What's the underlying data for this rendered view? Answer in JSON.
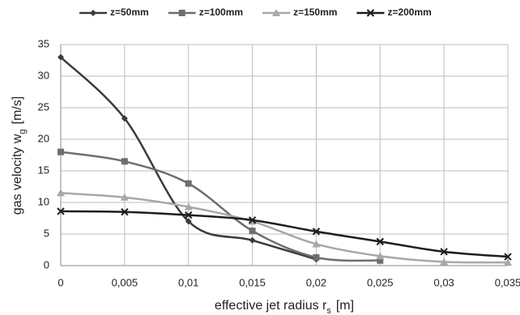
{
  "chart_data": {
    "type": "line",
    "xlabel": {
      "text": "effective jet radius r",
      "sub": "s",
      "unit": "[m]"
    },
    "ylabel": {
      "text": "gas velocity w",
      "sub": "g",
      "unit": "[m/s]"
    },
    "xlim": [
      0,
      0.035
    ],
    "ylim": [
      0,
      35
    ],
    "xticks": [
      0,
      {
        "value": 0.005,
        "label": "0,005"
      },
      {
        "value": 0.01,
        "label": "0,01"
      },
      {
        "value": 0.015,
        "label": "0,015"
      },
      {
        "value": 0.02,
        "label": "0,02"
      },
      {
        "value": 0.025,
        "label": "0,025"
      },
      {
        "value": 0.03,
        "label": "0,03"
      },
      {
        "value": 0.035,
        "label": "0,035"
      }
    ],
    "yticks": [
      0,
      5,
      10,
      15,
      20,
      25,
      30,
      35
    ],
    "grid": true,
    "smooth": true,
    "legend": "top",
    "series": [
      {
        "name": "z=50mm",
        "color": "#3a3a3a",
        "marker": "diamond",
        "x": [
          0,
          0.005,
          0.01,
          0.015,
          0.02
        ],
        "values": [
          33,
          23.3,
          7,
          4,
          1
        ]
      },
      {
        "name": "z=100mm",
        "color": "#6e6e6e",
        "marker": "square",
        "x": [
          0,
          0.005,
          0.01,
          0.015,
          0.02,
          0.025
        ],
        "values": [
          18,
          16.5,
          13,
          5.5,
          1.3,
          0.8
        ]
      },
      {
        "name": "z=150mm",
        "color": "#a8a8a8",
        "marker": "triangle",
        "x": [
          0,
          0.005,
          0.01,
          0.015,
          0.02,
          0.025,
          0.03,
          0.035
        ],
        "values": [
          11.5,
          10.8,
          9.3,
          7,
          3.4,
          1.5,
          0.6,
          0.5
        ]
      },
      {
        "name": "z=200mm",
        "color": "#1e1e1e",
        "marker": "cross",
        "x": [
          0,
          0.005,
          0.01,
          0.015,
          0.02,
          0.025,
          0.03,
          0.035
        ],
        "values": [
          8.6,
          8.5,
          8,
          7.2,
          5.4,
          3.8,
          2.2,
          1.4
        ]
      }
    ]
  }
}
